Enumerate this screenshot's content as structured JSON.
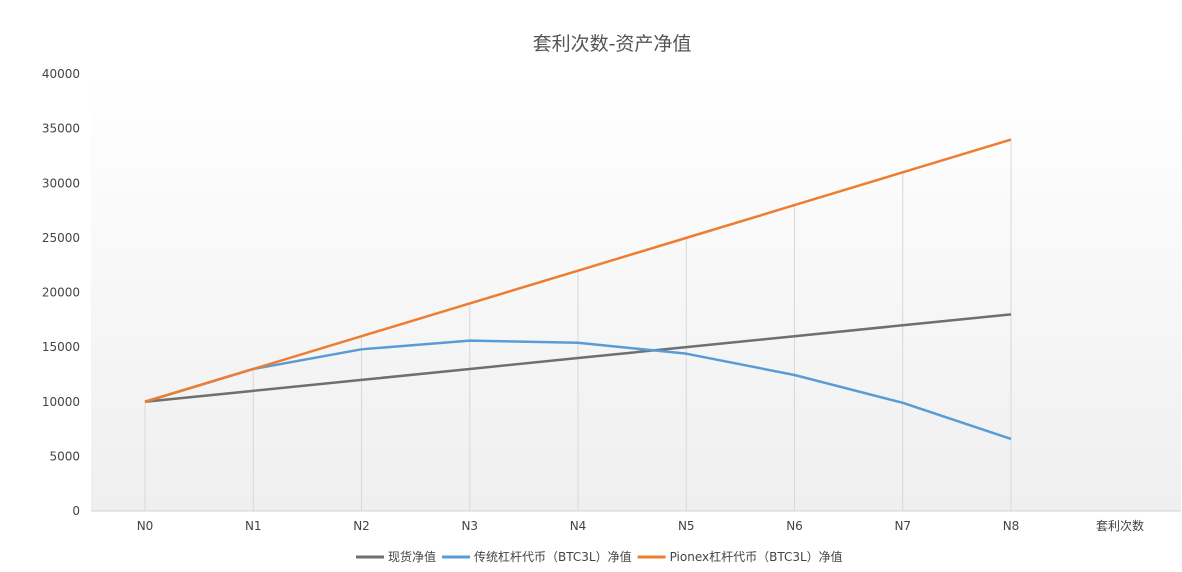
{
  "chart_data": {
    "type": "line",
    "title": "套利次数-资产净值",
    "xlabel": "套利次数",
    "ylabel": "",
    "categories": [
      "N0",
      "N1",
      "N2",
      "N3",
      "N4",
      "N5",
      "N6",
      "N7",
      "N8"
    ],
    "ylim": [
      0,
      40000
    ],
    "yticks": [
      0,
      5000,
      10000,
      15000,
      20000,
      25000,
      30000,
      35000,
      40000
    ],
    "grid": "drop-lines",
    "legend": "bottom",
    "series": [
      {
        "name": "现货净值",
        "color": "#6f6f6f",
        "values": [
          10000,
          11000,
          12000,
          13000,
          14000,
          15000,
          16000,
          17000,
          18000
        ]
      },
      {
        "name": "传统杠杆代币（BTC3L）净值",
        "color": "#5b9bd5",
        "values": [
          10000,
          13000,
          14800,
          15600,
          15400,
          14400,
          12450,
          9900,
          6600
        ]
      },
      {
        "name": "Pionex杠杆代币（BTC3L）净值",
        "color": "#ed7d31",
        "values": [
          10000,
          13000,
          16000,
          19000,
          22000,
          25000,
          28000,
          31000,
          34000
        ]
      }
    ]
  }
}
